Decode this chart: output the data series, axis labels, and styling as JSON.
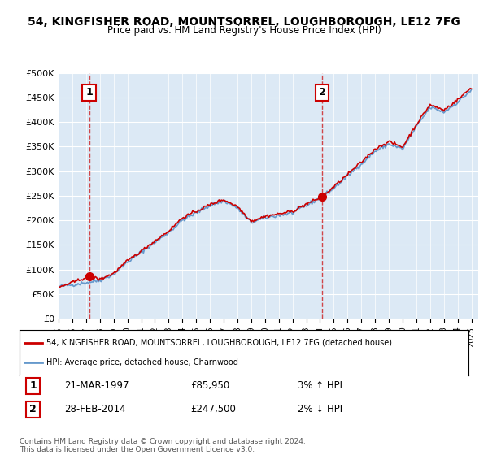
{
  "title": "54, KINGFISHER ROAD, MOUNTSORREL, LOUGHBOROUGH, LE12 7FG",
  "subtitle": "Price paid vs. HM Land Registry's House Price Index (HPI)",
  "bg_color": "#dce9f5",
  "plot_bg_color": "#dce9f5",
  "ylabel_ticks": [
    "£0",
    "£50K",
    "£100K",
    "£150K",
    "£200K",
    "£250K",
    "£300K",
    "£350K",
    "£400K",
    "£450K",
    "£500K"
  ],
  "ytick_values": [
    0,
    50000,
    100000,
    150000,
    200000,
    250000,
    300000,
    350000,
    400000,
    450000,
    500000
  ],
  "x_start_year": 1995,
  "x_end_year": 2025,
  "sale1_year": 1997.22,
  "sale1_price": 85950,
  "sale1_label": "1",
  "sale1_date": "21-MAR-1997",
  "sale1_hpi": "3% ↑ HPI",
  "sale2_year": 2014.15,
  "sale2_price": 247500,
  "sale2_label": "2",
  "sale2_date": "28-FEB-2014",
  "sale2_hpi": "2% ↓ HPI",
  "legend_line1": "54, KINGFISHER ROAD, MOUNTSORREL, LOUGHBOROUGH, LE12 7FG (detached house)",
  "legend_line2": "HPI: Average price, detached house, Charnwood",
  "footer1": "Contains HM Land Registry data © Crown copyright and database right 2024.",
  "footer2": "This data is licensed under the Open Government Licence v3.0.",
  "red_line_color": "#cc0000",
  "blue_line_color": "#6699cc",
  "marker_color": "#cc0000"
}
